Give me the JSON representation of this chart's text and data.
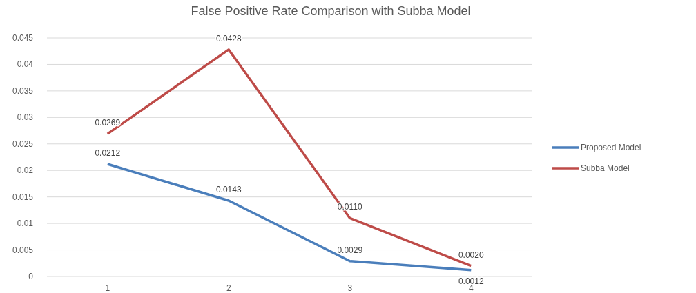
{
  "chart_data": {
    "type": "line",
    "title": "False Positive Rate Comparison with Subba Model",
    "categories": [
      "1",
      "2",
      "3",
      "4"
    ],
    "series": [
      {
        "name": "Proposed Model",
        "color": "#4a7ebb",
        "values": [
          0.0212,
          0.0143,
          0.0029,
          0.0012
        ],
        "value_labels": [
          "0.0212",
          "0.0143",
          "0.0029",
          "0.0012"
        ]
      },
      {
        "name": "Subba Model",
        "color": "#be4b48",
        "values": [
          0.0269,
          0.0428,
          0.011,
          0.002
        ],
        "value_labels": [
          "0.0269",
          "0.0428",
          "0.0110",
          "0.0020"
        ]
      }
    ],
    "ylim": [
      0,
      0.045
    ],
    "yticks": [
      {
        "value": 0,
        "label": "0"
      },
      0.005,
      0.01,
      0.015,
      0.02,
      0.025,
      0.03,
      0.035,
      0.04,
      0.045
    ],
    "grid": "y",
    "legend": "right",
    "marker": "none",
    "line_style": "solid"
  }
}
